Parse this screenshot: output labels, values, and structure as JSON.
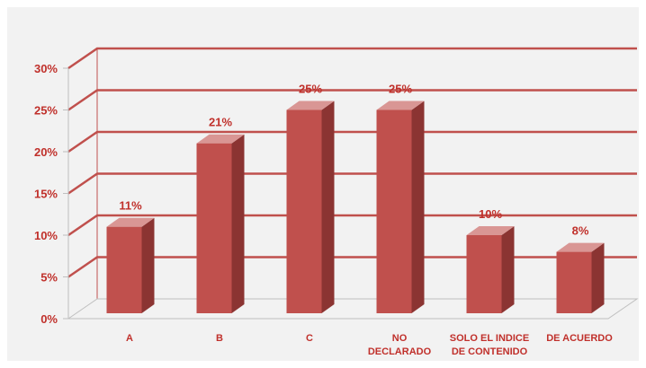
{
  "chart_data": {
    "type": "bar",
    "categories": [
      [
        "A"
      ],
      [
        "B"
      ],
      [
        "C"
      ],
      [
        "NO",
        "DECLARADO"
      ],
      [
        "SOLO EL INDICE",
        "DE CONTENIDO"
      ],
      [
        "DE ACUERDO"
      ]
    ],
    "values": [
      11,
      21,
      25,
      25,
      10,
      8
    ],
    "data_labels": [
      "11%",
      "21%",
      "25%",
      "25%",
      "10%",
      "8%"
    ],
    "title": "",
    "xlabel": "",
    "ylabel": "",
    "ylim": [
      0,
      30
    ],
    "yticks": [
      0,
      5,
      10,
      15,
      20,
      25,
      30
    ],
    "ytick_labels": [
      "0%",
      "5%",
      "10%",
      "15%",
      "20%",
      "25%",
      "30%"
    ],
    "grid": true,
    "style": "3d-column",
    "legend": "none",
    "colors": {
      "bar_front": "#c0504d",
      "bar_side": "#8b3432",
      "bar_top": "#d99694",
      "gridline": "#c0504d",
      "text": "#c0302b",
      "background": "#f2f2f2",
      "floor_edge": "#bfbfbf"
    }
  }
}
